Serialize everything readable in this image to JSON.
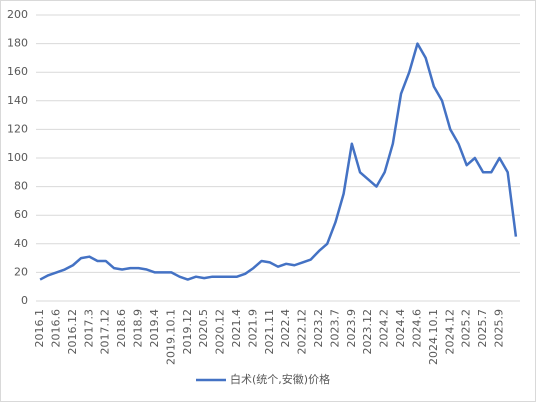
{
  "chart_data": {
    "type": "line",
    "categories": [
      "2016.1",
      null,
      "2016.6",
      null,
      "2016.12",
      null,
      "2017.3",
      null,
      "2017.12",
      null,
      "2018.6",
      null,
      "2018.9",
      null,
      "2019.4",
      null,
      "2019.10.1",
      null,
      "2019.12",
      null,
      "2020.5",
      null,
      "2020.12",
      null,
      "2021.4",
      null,
      "2021.9",
      null,
      "2021.11",
      null,
      "2022.4",
      null,
      "2022.12",
      null,
      "2023.2",
      null,
      "2023.7",
      null,
      "2023.9",
      null,
      "2023.12",
      null,
      "2024.2",
      null,
      "2024.4",
      null,
      "2024.6",
      null,
      "2024.10.1",
      null,
      "2024.12",
      null,
      "2025.2",
      null,
      "2025.7",
      null,
      "2025.9",
      null,
      null
    ],
    "series": [
      {
        "name": "白术(统个,安徽)价格",
        "color": "#4472c4",
        "values": [
          15,
          18,
          20,
          22,
          25,
          30,
          31,
          28,
          28,
          23,
          22,
          23,
          23,
          22,
          20,
          20,
          20,
          17,
          15,
          17,
          16,
          17,
          17,
          17,
          17,
          19,
          23,
          28,
          27,
          24,
          26,
          25,
          27,
          29,
          35,
          40,
          55,
          75,
          110,
          90,
          85,
          80,
          90,
          110,
          145,
          160,
          180,
          170,
          150,
          140,
          120,
          110,
          95,
          100,
          90,
          90,
          100,
          90,
          45
        ]
      }
    ],
    "ylim": [
      0,
      200
    ],
    "yticks": [
      0,
      20,
      40,
      60,
      80,
      100,
      120,
      140,
      160,
      180,
      200
    ],
    "grid": true
  }
}
